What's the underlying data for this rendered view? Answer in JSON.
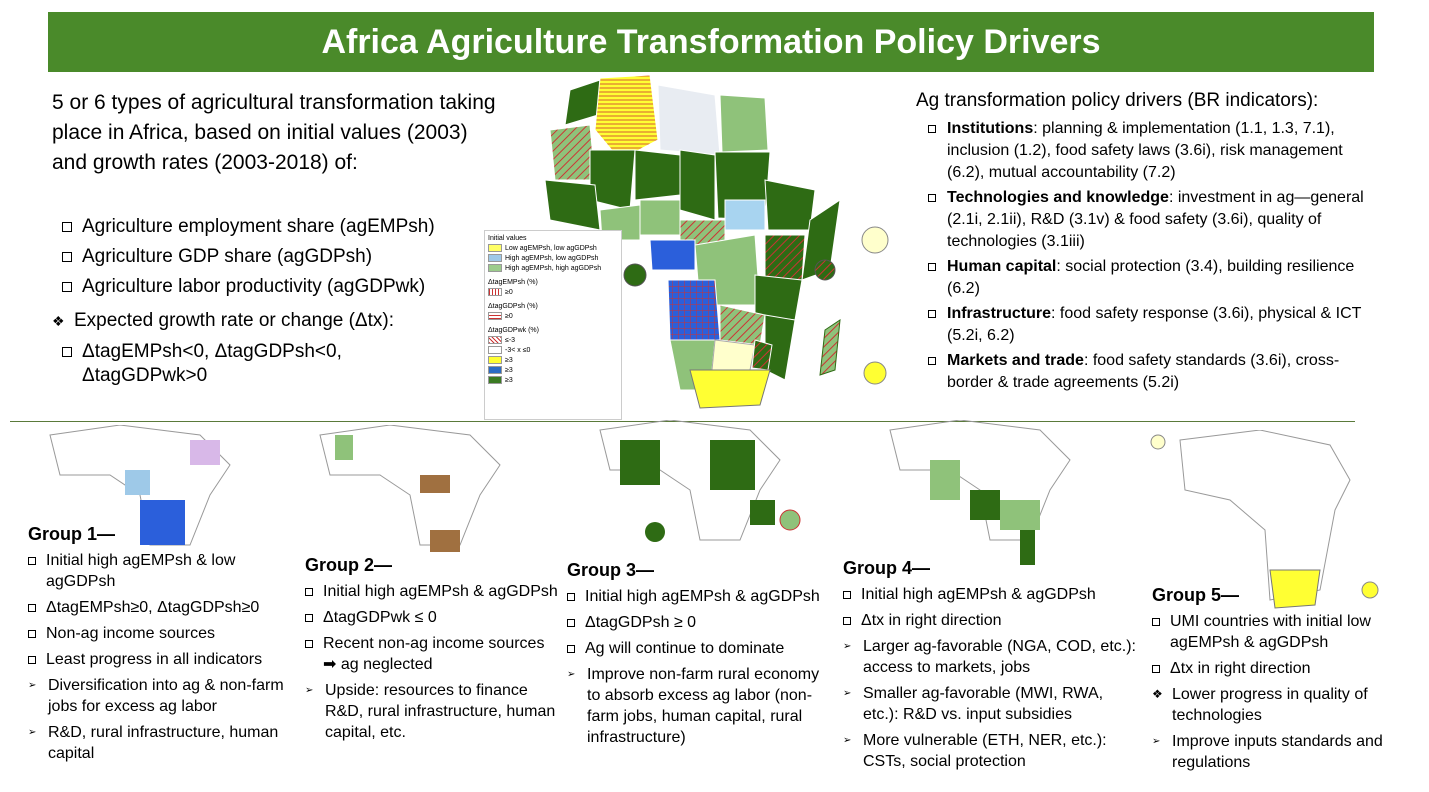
{
  "title": "Africa Agriculture Transformation Policy Drivers",
  "intro": {
    "text": "5 or 6 types of agricultural transformation taking place in Africa, based on initial values (2003) and growth rates (2003-2018) of:",
    "items": [
      "Agriculture employment share (agEMPsh)",
      "Agriculture GDP share (agGDPsh)",
      "Agriculture labor productivity (agGDPwk)"
    ],
    "expected": "Expected growth rate or change (Δtx):",
    "expected_sub": "ΔtagEMPsh<0, ΔtagGDPsh<0, ΔtagGDPwk>0"
  },
  "drivers": {
    "heading": "Ag transformation policy drivers (BR indicators):",
    "items": [
      {
        "bold": "Institutions",
        "text": ": planning & implementation (1.1, 1.3, 7.1), inclusion (1.2), food safety laws (3.6i), risk management (6.2), mutual accountability (7.2)"
      },
      {
        "bold": "Technologies and knowledge",
        "text": ": investment in ag—general (2.1i, 2.1ii), R&D (3.1v) & food safety (3.6i), quality of technologies (3.1iii)"
      },
      {
        "bold": "Human capital",
        "text": ": social protection (3.4), building resilience (6.2)"
      },
      {
        "bold": "Infrastructure",
        "text": ": food safety response (3.6i), physical & ICT (5.2i, 6.2)"
      },
      {
        "bold": "Markets and trade",
        "text": ": food safety standards (3.6i), cross-border & trade agreements (5.2i)"
      }
    ]
  },
  "legend": {
    "title": "Initial values",
    "initial": [
      {
        "label": "Low agEMPsh, low agGDPsh",
        "color": "#ffff66"
      },
      {
        "label": "High agEMPsh, low agGDPsh",
        "color": "#9ec9e8"
      },
      {
        "label": "High agEMPsh, high agGDPsh",
        "color": "#9ccc8c"
      }
    ],
    "emp_title": "ΔtagEMPsh (%)",
    "emp_label": "≥0",
    "gdp_title": "ΔtagGDPsh (%)",
    "gdp_label": "≥0",
    "wk_title": "ΔtagGDPwk (%)",
    "wk_labels": [
      "≤-3",
      "-3< x ≤0",
      "≥3",
      "≥3",
      "≥3"
    ]
  },
  "groups": [
    {
      "title": "Group 1—",
      "items": [
        {
          "mark": "box",
          "text": "Initial high agEMPsh & low agGDPsh"
        },
        {
          "mark": "box",
          "text": "ΔtagEMPsh≥0, ΔtagGDPsh≥0"
        },
        {
          "mark": "box",
          "text": "Non-ag income sources"
        },
        {
          "mark": "box",
          "text": "Least progress in all indicators"
        },
        {
          "mark": "arrow",
          "text": "Diversification into ag & non-farm jobs for excess ag labor"
        },
        {
          "mark": "arrow",
          "text": "R&D, rural infrastructure, human capital"
        }
      ]
    },
    {
      "title": "Group 2—",
      "items": [
        {
          "mark": "box",
          "text": "Initial high agEMPsh & agGDPsh"
        },
        {
          "mark": "box",
          "text": "ΔtagGDPwk ≤ 0"
        },
        {
          "mark": "box",
          "text": "Recent non-ag income sources ➡ ag neglected"
        },
        {
          "mark": "arrow",
          "text": "Upside: resources to finance R&D, rural infrastructure, human capital, etc."
        }
      ]
    },
    {
      "title": "Group 3—",
      "items": [
        {
          "mark": "box",
          "text": "Initial high agEMPsh & agGDPsh"
        },
        {
          "mark": "box",
          "text": "ΔtagGDPsh ≥ 0"
        },
        {
          "mark": "box",
          "text": "Ag will continue to dominate"
        },
        {
          "mark": "arrow",
          "text": "Improve non-farm rural economy to absorb excess ag labor (non-farm jobs, human capital, rural infrastructure)"
        }
      ]
    },
    {
      "title": "Group 4—",
      "items": [
        {
          "mark": "box",
          "text": "Initial high agEMPsh & agGDPsh"
        },
        {
          "mark": "box",
          "text": "Δtx in right direction"
        },
        {
          "mark": "arrow",
          "text": "Larger ag-favorable (NGA, COD, etc.): access to markets, jobs"
        },
        {
          "mark": "arrow",
          "text": "Smaller ag-favorable (MWI, RWA, etc.): R&D vs. input subsidies"
        },
        {
          "mark": "arrow",
          "text": "More vulnerable (ETH, NER, etc.): CSTs, social protection"
        }
      ]
    },
    {
      "title": "Group 5—",
      "items": [
        {
          "mark": "box",
          "text": "UMI countries with initial low agEMPsh & agGDPsh"
        },
        {
          "mark": "box",
          "text": "Δtx in right direction"
        },
        {
          "mark": "diamond",
          "text": "Lower progress in quality of technologies"
        },
        {
          "mark": "arrow",
          "text": "Improve inputs standards and regulations"
        }
      ]
    }
  ],
  "colors": {
    "title_bg": "#4a8a2a",
    "dark_green": "#2e6b14",
    "light_green": "#8fc27a",
    "yellow": "#ffff33",
    "light_yellow": "#ffffcc",
    "blue": "#2b5fdb",
    "light_blue": "#a8d4f0",
    "hatch_red": "#cc3333"
  }
}
